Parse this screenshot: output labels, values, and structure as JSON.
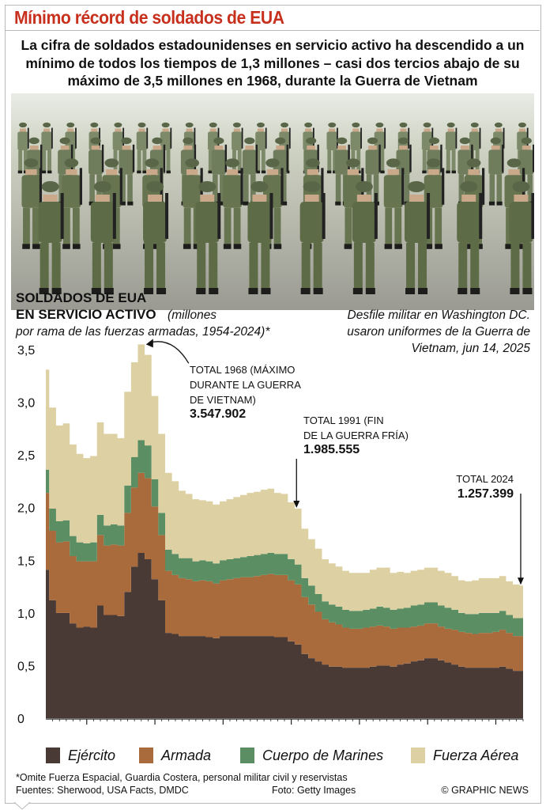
{
  "header": {
    "title": "Mínimo récord de soldados de EUA",
    "subtitle": "La cifra de soldados estadounidenses en servicio activo ha descendido a un mínimo de todos los tiempos de 1,3 millones – casi dos tercios abajo de su máximo de 3,5 millones en 1968, durante la Guerra de Vietnam"
  },
  "photo": {
    "caption": "Desfile militar en Washington DC. usaron uniformes de la Guerra de Vietnam, jun 14, 2025",
    "credit": "Foto: Getty Images"
  },
  "chart_heading": {
    "title_line1": "SOLDADOS DE EUA",
    "title_line2": "EN SERVICIO ACTIVO",
    "units": "(millones",
    "subtitle": "por rama de las fuerzas armadas, 1954-2024)*"
  },
  "chart_data": {
    "type": "area",
    "stacked": true,
    "x_range": [
      1954,
      2024
    ],
    "x_ticks": [
      1960,
      1970,
      1980,
      1990,
      2000,
      2010,
      2020
    ],
    "ylim": [
      0,
      3.5
    ],
    "y_ticks": [
      0,
      0.5,
      1.0,
      1.5,
      2.0,
      2.5,
      3.0,
      3.5
    ],
    "y_tick_labels": [
      "0",
      "0,5",
      "1,0",
      "1,5",
      "2,0",
      "2,5",
      "3,0",
      "3,5"
    ],
    "grid": false,
    "legend_position": "bottom",
    "x": [
      1954,
      1955,
      1956,
      1957,
      1958,
      1959,
      1960,
      1961,
      1962,
      1963,
      1964,
      1965,
      1966,
      1967,
      1968,
      1969,
      1970,
      1971,
      1972,
      1973,
      1974,
      1975,
      1976,
      1977,
      1978,
      1979,
      1980,
      1981,
      1982,
      1983,
      1984,
      1985,
      1986,
      1987,
      1988,
      1989,
      1990,
      1991,
      1992,
      1993,
      1994,
      1995,
      1996,
      1997,
      1998,
      1999,
      2000,
      2001,
      2002,
      2003,
      2004,
      2005,
      2006,
      2007,
      2008,
      2009,
      2010,
      2011,
      2012,
      2013,
      2014,
      2015,
      2016,
      2017,
      2018,
      2019,
      2020,
      2021,
      2022,
      2023,
      2024
    ],
    "series": [
      {
        "name": "Ejército",
        "color": "#4a3a35",
        "values": [
          1.41,
          1.12,
          1.0,
          1.0,
          0.9,
          0.86,
          0.87,
          0.86,
          1.07,
          0.98,
          0.98,
          0.97,
          1.2,
          1.44,
          1.57,
          1.51,
          1.32,
          1.12,
          0.81,
          0.8,
          0.78,
          0.78,
          0.78,
          0.78,
          0.77,
          0.76,
          0.78,
          0.78,
          0.78,
          0.78,
          0.78,
          0.78,
          0.78,
          0.78,
          0.77,
          0.77,
          0.73,
          0.7,
          0.61,
          0.57,
          0.54,
          0.51,
          0.49,
          0.49,
          0.48,
          0.48,
          0.48,
          0.48,
          0.49,
          0.5,
          0.5,
          0.49,
          0.51,
          0.52,
          0.54,
          0.55,
          0.57,
          0.57,
          0.55,
          0.53,
          0.51,
          0.49,
          0.48,
          0.48,
          0.48,
          0.48,
          0.48,
          0.49,
          0.47,
          0.45,
          0.45
        ]
      },
      {
        "name": "Armada",
        "color": "#a96b3c",
        "values": [
          0.73,
          0.66,
          0.67,
          0.68,
          0.64,
          0.63,
          0.62,
          0.63,
          0.67,
          0.66,
          0.67,
          0.67,
          0.75,
          0.75,
          0.76,
          0.77,
          0.69,
          0.62,
          0.59,
          0.56,
          0.55,
          0.54,
          0.52,
          0.53,
          0.53,
          0.52,
          0.53,
          0.54,
          0.55,
          0.56,
          0.56,
          0.57,
          0.58,
          0.59,
          0.59,
          0.59,
          0.58,
          0.57,
          0.54,
          0.51,
          0.47,
          0.43,
          0.42,
          0.4,
          0.38,
          0.37,
          0.37,
          0.38,
          0.38,
          0.38,
          0.37,
          0.36,
          0.35,
          0.34,
          0.33,
          0.33,
          0.33,
          0.33,
          0.32,
          0.32,
          0.33,
          0.33,
          0.33,
          0.32,
          0.33,
          0.33,
          0.34,
          0.35,
          0.34,
          0.33,
          0.33
        ]
      },
      {
        "name": "Cuerpo de Marines",
        "color": "#5b8e63",
        "values": [
          0.22,
          0.21,
          0.2,
          0.2,
          0.19,
          0.18,
          0.17,
          0.18,
          0.19,
          0.19,
          0.19,
          0.19,
          0.26,
          0.29,
          0.31,
          0.31,
          0.26,
          0.21,
          0.2,
          0.2,
          0.19,
          0.2,
          0.19,
          0.19,
          0.19,
          0.19,
          0.19,
          0.19,
          0.19,
          0.19,
          0.2,
          0.2,
          0.2,
          0.2,
          0.2,
          0.2,
          0.2,
          0.19,
          0.18,
          0.18,
          0.17,
          0.17,
          0.17,
          0.17,
          0.17,
          0.17,
          0.17,
          0.17,
          0.17,
          0.18,
          0.18,
          0.18,
          0.18,
          0.19,
          0.2,
          0.2,
          0.2,
          0.2,
          0.2,
          0.2,
          0.19,
          0.18,
          0.18,
          0.19,
          0.19,
          0.19,
          0.18,
          0.18,
          0.17,
          0.17,
          0.17
        ]
      },
      {
        "name": "Fuerza Aérea",
        "color": "#ddd1a3",
        "values": [
          0.95,
          0.96,
          0.91,
          0.92,
          0.87,
          0.84,
          0.81,
          0.82,
          0.88,
          0.87,
          0.86,
          0.83,
          0.89,
          0.9,
          0.91,
          0.86,
          0.79,
          0.75,
          0.73,
          0.69,
          0.64,
          0.61,
          0.59,
          0.57,
          0.57,
          0.56,
          0.56,
          0.57,
          0.58,
          0.59,
          0.6,
          0.6,
          0.61,
          0.61,
          0.58,
          0.57,
          0.54,
          0.53,
          0.47,
          0.44,
          0.43,
          0.4,
          0.39,
          0.38,
          0.37,
          0.36,
          0.36,
          0.35,
          0.37,
          0.37,
          0.38,
          0.35,
          0.35,
          0.33,
          0.33,
          0.33,
          0.33,
          0.33,
          0.33,
          0.33,
          0.32,
          0.31,
          0.31,
          0.32,
          0.33,
          0.33,
          0.33,
          0.33,
          0.32,
          0.32,
          0.31
        ]
      }
    ],
    "annotations": [
      {
        "year": 1968,
        "text_line1": "TOTAL 1968 (MÁXIMO",
        "text_line2": "DURANTE LA GUERRA",
        "text_line3": "DE VIETNAM)",
        "value": "3.547.902"
      },
      {
        "year": 1991,
        "text_line1": "TOTAL 1991 (FIN",
        "text_line2": "DE LA GUERRA FRÍA)",
        "value": "1.985.555"
      },
      {
        "year": 2024,
        "text_line1": "TOTAL 2024",
        "value": "1.257.399"
      }
    ]
  },
  "legend": [
    {
      "label": "Ejército",
      "color": "#4a3a35"
    },
    {
      "label": "Armada",
      "color": "#a96b3c"
    },
    {
      "label": "Cuerpo de Marines",
      "color": "#5b8e63"
    },
    {
      "label": "Fuerza Aérea",
      "color": "#ddd1a3"
    }
  ],
  "footer": {
    "footnote": "*Omite Fuerza Espacial, Guardia Costera, personal militar civil y reservistas",
    "sources": "Fuentes: Sherwood, USA Facts, DMDC",
    "credit": "© GRAPHIC NEWS"
  }
}
